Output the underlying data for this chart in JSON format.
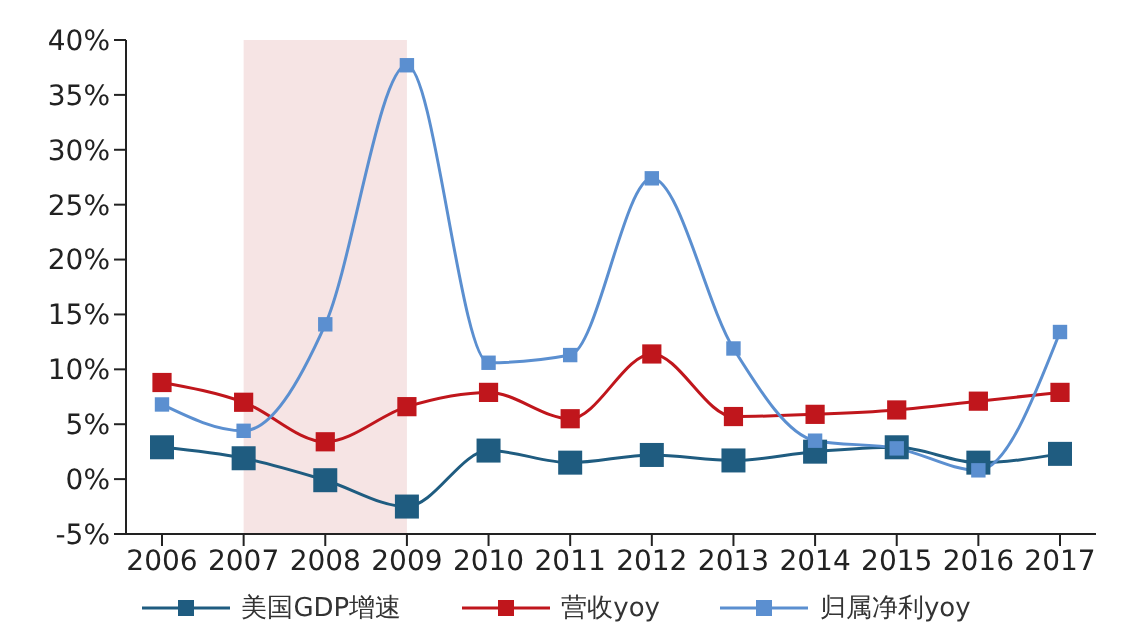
{
  "chart_data": {
    "type": "line",
    "categories": [
      "2006",
      "2007",
      "2008",
      "2009",
      "2010",
      "2011",
      "2012",
      "2013",
      "2014",
      "2015",
      "2016",
      "2017"
    ],
    "series": [
      {
        "name": "美国GDP增速",
        "color": "#1f5c80",
        "values": [
          2.9,
          1.9,
          -0.1,
          -2.5,
          2.6,
          1.5,
          2.2,
          1.7,
          2.5,
          2.9,
          1.5,
          2.3
        ]
      },
      {
        "name": "营收yoy",
        "color": "#c0161c",
        "values": [
          8.8,
          7.0,
          3.4,
          6.6,
          7.9,
          5.5,
          11.4,
          5.7,
          5.9,
          6.3,
          7.1,
          7.9
        ]
      },
      {
        "name": "归属净利yoy",
        "color": "#5b8fd0",
        "values": [
          6.8,
          4.4,
          14.1,
          37.7,
          10.6,
          11.3,
          27.4,
          11.9,
          3.5,
          2.8,
          0.8,
          13.4
        ]
      }
    ],
    "ylim": [
      -5,
      40
    ],
    "yticks": [
      {
        "value": -5,
        "label": "-5%"
      },
      {
        "value": 0,
        "label": "0%"
      },
      {
        "value": 5,
        "label": "5%"
      },
      {
        "value": 10,
        "label": "10%"
      },
      {
        "value": 15,
        "label": "15%"
      },
      {
        "value": 20,
        "label": "20%"
      },
      {
        "value": 25,
        "label": "25%"
      },
      {
        "value": 30,
        "label": "30%"
      },
      {
        "value": 35,
        "label": "35%"
      },
      {
        "value": 40,
        "label": "40%"
      }
    ],
    "bands": [
      {
        "axis": "x",
        "from": "2007",
        "to": "2009",
        "color": "#f6e4e4"
      }
    ],
    "grid": false,
    "legend": "bottom",
    "marker": "square",
    "line_style": "solid"
  }
}
